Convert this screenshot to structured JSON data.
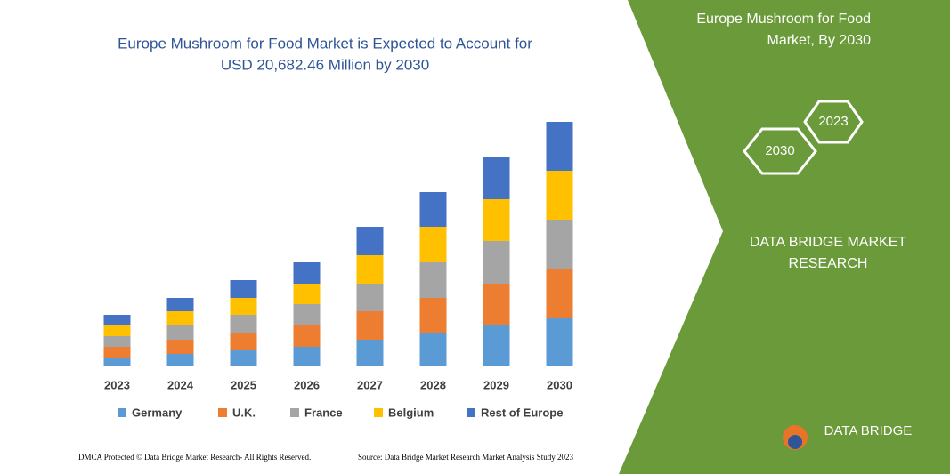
{
  "chart_data": {
    "type": "stacked-bar",
    "title": [
      "Europe Mushroom for Food Market is Expected to Account for",
      "USD 20,682.46 Million by 2030"
    ],
    "categories": [
      "2023",
      "2024",
      "2025",
      "2026",
      "2027",
      "2028",
      "2029",
      "2030"
    ],
    "series": [
      {
        "name": "Germany",
        "color": "#5b9bd5",
        "values": [
          10,
          14,
          18,
          22,
          30,
          38,
          46,
          54
        ]
      },
      {
        "name": "U.K.",
        "color": "#ed7d31",
        "values": [
          12,
          16,
          20,
          24,
          32,
          39,
          47,
          55
        ]
      },
      {
        "name": "France",
        "color": "#a5a5a5",
        "values": [
          12,
          16,
          20,
          24,
          31,
          40,
          48,
          56
        ]
      },
      {
        "name": "Belgium",
        "color": "#ffc000",
        "values": [
          12,
          16,
          19,
          23,
          32,
          40,
          47,
          55
        ]
      },
      {
        "name": "Rest of Europe",
        "color": "#4472c4",
        "values": [
          12,
          15,
          20,
          24,
          32,
          39,
          48,
          55
        ]
      }
    ]
  },
  "panel": {
    "title": [
      "Europe Mushroom for Food",
      "Market, By 2030"
    ],
    "hexagons": [
      "2030",
      "2023"
    ],
    "brand": [
      "DATA BRIDGE MARKET",
      "RESEARCH"
    ],
    "logo": "DATA BRIDGE"
  },
  "footer": {
    "left": "DMCA Protected © Data Bridge Market Research- All Rights Reserved.",
    "right": "Source: Data Bridge Market Research  Market Analysis Study 2023"
  }
}
